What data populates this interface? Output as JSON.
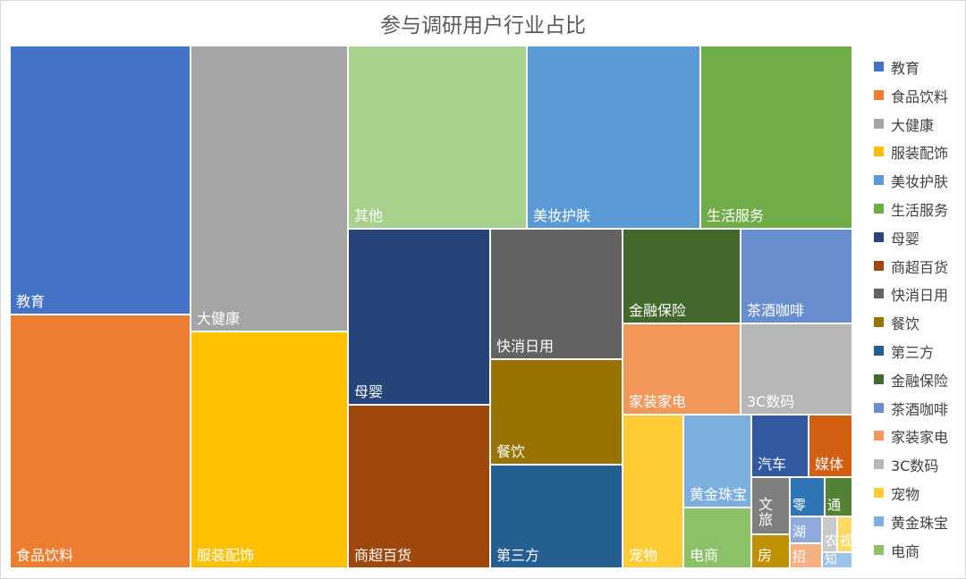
{
  "chart_data": {
    "type": "treemap",
    "title": "参与调研用户行业占比",
    "legend_position": "right",
    "items": [
      {
        "name": "教育",
        "value": 100,
        "color": "#4472C4"
      },
      {
        "name": "食品饮料",
        "value": 95,
        "color": "#ED7D31"
      },
      {
        "name": "大健康",
        "value": 56,
        "color": "#A5A5A5"
      },
      {
        "name": "服装配饰",
        "value": 47,
        "color": "#FFC000"
      },
      {
        "name": "其他",
        "value": 40,
        "color": "#A9D18E"
      },
      {
        "name": "美妆护肤",
        "value": 39,
        "color": "#5B9BD5"
      },
      {
        "name": "生活服务",
        "value": 34,
        "color": "#70AD47"
      },
      {
        "name": "母婴",
        "value": 28,
        "color": "#264478"
      },
      {
        "name": "商超百货",
        "value": 29,
        "color": "#9E480E"
      },
      {
        "name": "快消日用",
        "value": 23,
        "color": "#636363"
      },
      {
        "name": "餐饮",
        "value": 18,
        "color": "#997300"
      },
      {
        "name": "第三方",
        "value": 17,
        "color": "#255E91"
      },
      {
        "name": "金融保险",
        "value": 14,
        "color": "#43682B"
      },
      {
        "name": "茶酒咖啡",
        "value": 14,
        "color": "#698ED0"
      },
      {
        "name": "家装家电",
        "value": 14,
        "color": "#F1975A"
      },
      {
        "name": "3C数码",
        "value": 13,
        "color": "#B7B7B7"
      },
      {
        "name": "宠物",
        "value": 11,
        "color": "#FFCD33"
      },
      {
        "name": "黄金珠宝",
        "value": 8,
        "color": "#7CAFDD"
      },
      {
        "name": "电商",
        "value": 7,
        "color": "#8CC168"
      },
      {
        "name": "汽车",
        "value": 5,
        "color": "#335AA1"
      },
      {
        "name": "媒体",
        "value": 4,
        "color": "#D26012"
      },
      {
        "name": "文旅",
        "value": 4,
        "color": "#7F7F7F"
      },
      {
        "name": "零",
        "value": 2,
        "color": "#2E75B6"
      },
      {
        "name": "通",
        "value": 2,
        "color": "#548235"
      },
      {
        "name": "房",
        "value": 2,
        "color": "#BF9000"
      },
      {
        "name": "湖",
        "value": 1,
        "color": "#8FAADC"
      },
      {
        "name": "招",
        "value": 1,
        "color": "#F4B183"
      },
      {
        "name": "农",
        "value": 1,
        "color": "#C9C9C9"
      },
      {
        "name": "视",
        "value": 1,
        "color": "#FFD966"
      },
      {
        "name": "知",
        "value": 1,
        "color": "#9DC3E6"
      }
    ],
    "legend": [
      "教育",
      "食品饮料",
      "大健康",
      "服装配饰",
      "美妆护肤",
      "生活服务",
      "母婴",
      "商超百货",
      "快消日用",
      "餐饮",
      "第三方",
      "金融保险",
      "茶酒咖啡",
      "家装家电",
      "3C数码",
      "宠物",
      "黄金珠宝",
      "电商"
    ]
  }
}
